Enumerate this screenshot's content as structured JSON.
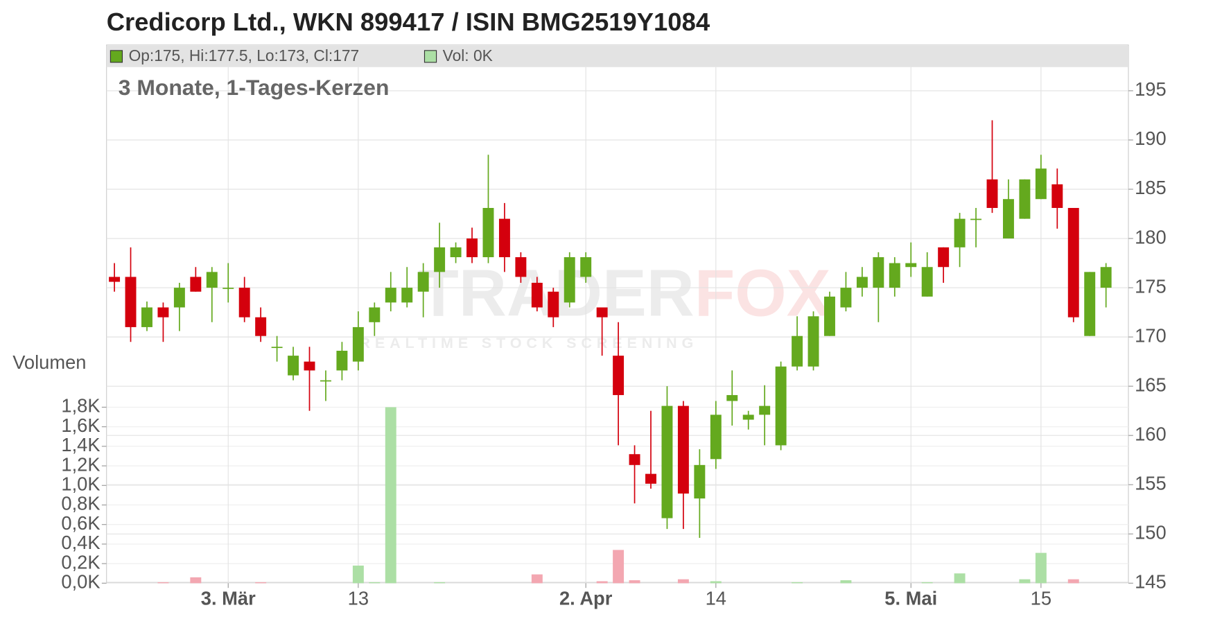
{
  "chart_data": {
    "type": "candlestick",
    "title": "Credicorp Ltd., WKN 899417 / ISIN BMG2519Y1084",
    "subtitle": "3 Monate, 1-Tages-Kerzen",
    "legend": {
      "price": "Op:175, Hi:177.5, Lo:173, Cl:177",
      "volume": "Vol: 0K"
    },
    "volume_label": "Volumen",
    "watermark": {
      "left": "TRADER",
      "right": "FOX",
      "tagline": "REALTIME STOCK SCREENING"
    },
    "categories": [
      null,
      null,
      null,
      null,
      null,
      null,
      null,
      "3. Mär",
      null,
      null,
      null,
      null,
      null,
      null,
      null,
      "13",
      null,
      null,
      null,
      null,
      null,
      null,
      null,
      null,
      null,
      null,
      null,
      null,
      null,
      "2. Apr",
      null,
      null,
      null,
      null,
      null,
      null,
      null,
      "14",
      null,
      null,
      null,
      null,
      null,
      null,
      null,
      null,
      null,
      null,
      null,
      "5. Mai",
      null,
      null,
      null,
      null,
      null,
      null,
      null,
      "15",
      null,
      null,
      null,
      null
    ],
    "open": [
      176.1,
      176.1,
      171.0,
      173.0,
      173.0,
      176.1,
      175.0,
      175.0,
      175.0,
      172.0,
      169.0,
      166.1,
      167.5,
      165.6,
      166.6,
      167.5,
      171.5,
      173.5,
      173.5,
      174.6,
      176.6,
      178.1,
      180.0,
      178.1,
      182.0,
      178.1,
      175.5,
      174.6,
      173.5,
      176.1,
      173.0,
      168.1,
      158.1,
      156.1,
      151.6,
      163.0,
      153.6,
      157.6,
      163.5,
      161.6,
      162.1,
      159.0,
      167.0,
      167.0,
      170.1,
      173.0,
      175.0,
      175.0,
      175.0,
      177.1,
      174.1,
      179.1,
      179.1,
      182.0,
      186.0,
      180.0,
      182.0,
      184.0,
      185.5,
      183.1,
      170.1,
      175.0
    ],
    "high": [
      177.5,
      179.1,
      173.6,
      173.5,
      175.5,
      177.1,
      177.1,
      177.5,
      176.1,
      173.0,
      170.1,
      169.0,
      169.0,
      166.6,
      169.5,
      172.6,
      173.5,
      176.6,
      177.1,
      177.5,
      181.6,
      179.6,
      181.1,
      188.5,
      183.6,
      178.6,
      176.1,
      175.0,
      178.6,
      178.6,
      173.0,
      171.5,
      159.0,
      162.5,
      165.0,
      163.5,
      158.6,
      163.5,
      166.6,
      162.5,
      165.1,
      167.5,
      172.1,
      172.6,
      174.6,
      176.6,
      177.1,
      178.6,
      178.1,
      179.6,
      178.6,
      179.1,
      182.6,
      183.1,
      192.0,
      186.0,
      186.0,
      188.5,
      187.1,
      183.1,
      176.6,
      177.5
    ],
    "low": [
      174.6,
      169.5,
      170.6,
      169.5,
      170.6,
      174.6,
      171.5,
      173.5,
      171.5,
      169.5,
      167.5,
      165.6,
      162.5,
      163.5,
      165.6,
      166.6,
      170.1,
      172.6,
      173.0,
      172.0,
      175.0,
      177.5,
      177.5,
      177.5,
      176.6,
      175.5,
      172.6,
      171.0,
      173.0,
      175.5,
      168.1,
      159.0,
      153.1,
      154.6,
      150.5,
      150.5,
      149.6,
      156.6,
      161.0,
      160.6,
      159.0,
      158.5,
      166.6,
      166.6,
      170.1,
      172.6,
      174.1,
      171.5,
      174.1,
      176.1,
      174.1,
      175.5,
      177.1,
      179.1,
      182.6,
      180.0,
      182.0,
      184.0,
      181.0,
      171.5,
      170.1,
      173.0
    ],
    "close": [
      175.6,
      171.0,
      173.0,
      172.0,
      175.0,
      174.6,
      176.6,
      175.0,
      172.0,
      170.1,
      169.0,
      168.1,
      166.6,
      165.6,
      168.6,
      171.0,
      173.0,
      175.0,
      175.0,
      176.6,
      179.1,
      179.1,
      178.1,
      183.1,
      178.1,
      176.1,
      173.0,
      172.0,
      178.1,
      178.1,
      172.0,
      164.1,
      157.0,
      155.1,
      163.0,
      154.1,
      157.0,
      162.1,
      164.1,
      162.1,
      163.0,
      167.0,
      170.1,
      172.1,
      174.1,
      175.0,
      176.1,
      178.1,
      177.5,
      177.5,
      177.1,
      177.1,
      182.0,
      182.0,
      183.1,
      184.0,
      186.0,
      187.1,
      183.1,
      172.0,
      176.6,
      177.1
    ],
    "volume": [
      0,
      0,
      0,
      0.01,
      0,
      0.06,
      0,
      0,
      0,
      0.01,
      0,
      0,
      0,
      0,
      0,
      0.18,
      0.01,
      1.8,
      0,
      0,
      0.01,
      0,
      0,
      0,
      0,
      0,
      0.09,
      0,
      0,
      0,
      0.02,
      0.34,
      0.03,
      0,
      0,
      0.04,
      0,
      0.02,
      0,
      0,
      0,
      0,
      0.01,
      0,
      0,
      0.03,
      0,
      0,
      0,
      0,
      0.01,
      0,
      0.1,
      0,
      0,
      0,
      0.04,
      0.31,
      0,
      0.04,
      0,
      0
    ],
    "up_color": "#64a91e",
    "down_color": "#d4000d",
    "volume_up_color": "#acdfa5",
    "volume_down_color": "#f3a7b1",
    "ylim": [
      145,
      195
    ],
    "yticks": [
      145,
      150,
      155,
      160,
      165,
      170,
      175,
      180,
      185,
      190,
      195
    ],
    "volume_ylim": [
      0,
      1.8
    ],
    "volume_ticks": [
      {
        "value": 0,
        "label": "0,0K"
      },
      {
        "value": 0.2,
        "label": "0,2K"
      },
      {
        "value": 0.4,
        "label": "0,4K"
      },
      {
        "value": 0.6,
        "label": "0,6K"
      },
      {
        "value": 0.8,
        "label": "0,8K"
      },
      {
        "value": 1.0,
        "label": "1,0K"
      },
      {
        "value": 1.2,
        "label": "1,2K"
      },
      {
        "value": 1.4,
        "label": "1,4K"
      },
      {
        "value": 1.6,
        "label": "1,6K"
      },
      {
        "value": 1.8,
        "label": "1,8K"
      }
    ],
    "grid": true
  }
}
